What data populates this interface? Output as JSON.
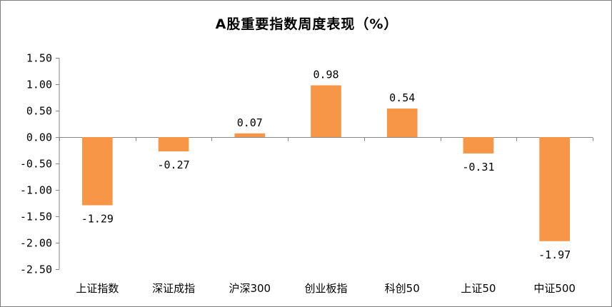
{
  "chart_data": {
    "type": "bar",
    "title": "A股重要指数周度表现（%）",
    "xlabel": "",
    "ylabel": "",
    "categories": [
      "上证指数",
      "深证成指",
      "沪深300",
      "创业板指",
      "科创50",
      "上证50",
      "中证500"
    ],
    "values": [
      -1.29,
      -0.27,
      0.07,
      0.98,
      0.54,
      -0.31,
      -1.97
    ],
    "data_labels": [
      "-1.29",
      "-0.27",
      "0.07",
      "0.98",
      "0.54",
      "-0.31",
      "-1.97"
    ],
    "ylim": [
      -2.5,
      1.5
    ],
    "yticks": [
      1.5,
      1.0,
      0.5,
      0.0,
      -0.5,
      -1.0,
      -1.5,
      -2.0,
      -2.5
    ],
    "ytick_labels": [
      "1.50",
      "1.00",
      "0.50",
      "0.00",
      "-0.50",
      "-1.00",
      "-1.50",
      "-2.00",
      "-2.50"
    ],
    "bar_color": "#f79646",
    "axis_color": "#868686",
    "grid": false,
    "legend": "none"
  }
}
